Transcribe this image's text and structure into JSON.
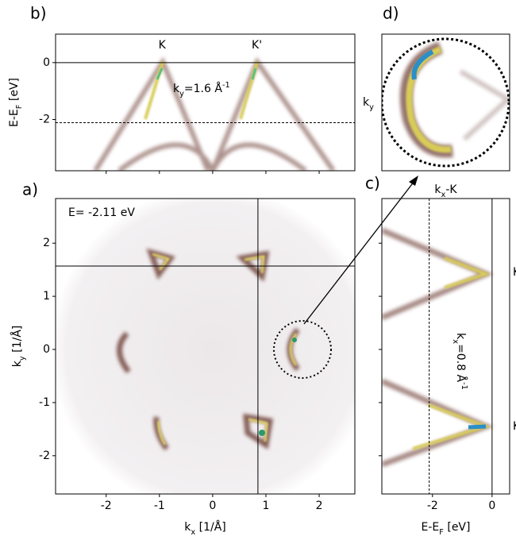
{
  "chart_data": [
    {
      "type": "image",
      "panel": "b)",
      "ylabel": [
        {
          "t": "E-E"
        },
        {
          "t": "F",
          "sub": true
        },
        {
          "t": " [eV]"
        }
      ],
      "xlim": [
        -2.95,
        2.67
      ],
      "ylim": [
        -3.8,
        1
      ],
      "xticks": [
        -2,
        -1,
        0,
        1,
        2
      ],
      "xtick_labels": false,
      "yticks": [
        -2,
        0
      ],
      "hlines": [
        0,
        -2.11
      ],
      "hline_styles": [
        "solid",
        "dashed"
      ],
      "points": [
        {
          "x": -0.95,
          "label": "K"
        },
        {
          "x": 0.83,
          "label": "K'"
        }
      ],
      "annotation": [
        {
          "t": "k"
        },
        {
          "t": "y",
          "sub": true
        },
        {
          "t": "=1.6 Å"
        },
        {
          "t": "-1",
          "sup": true
        }
      ]
    },
    {
      "type": "image",
      "panel": "a)",
      "xlabel": [
        {
          "t": "k"
        },
        {
          "t": "x",
          "sub": true
        },
        {
          "t": " [1/Å]"
        }
      ],
      "ylabel": [
        {
          "t": "k"
        },
        {
          "t": "y",
          "sub": true
        },
        {
          "t": " [1/Å]"
        }
      ],
      "xlim": [
        -2.95,
        2.67
      ],
      "ylim": [
        -2.72,
        2.84
      ],
      "xticks": [
        -2,
        -1,
        0,
        1,
        2
      ],
      "yticks": [
        -2,
        -1,
        0,
        1,
        2
      ],
      "hlines": [
        1.57
      ],
      "vlines": [
        0.85
      ],
      "annotation": [
        {
          "t": "E= -2.11 eV"
        }
      ]
    },
    {
      "type": "image",
      "panel": "d)",
      "xlabel": [
        {
          "t": "k"
        },
        {
          "t": "x",
          "sub": true
        },
        {
          "t": "-K"
        }
      ],
      "ylabel": [
        {
          "t": "k"
        },
        {
          "t": "y",
          "sub": true
        }
      ]
    },
    {
      "type": "image",
      "panel": "c)",
      "xlabel": [
        {
          "t": "E-E"
        },
        {
          "t": "F",
          "sub": true
        },
        {
          "t": " [eV]"
        }
      ],
      "xlim": [
        -3.7,
        0.59
      ],
      "ylim": [
        -2.72,
        2.84
      ],
      "xticks": [
        -2,
        0
      ],
      "yticks": [
        -2,
        -1,
        0,
        1,
        2
      ],
      "ytick_labels": false,
      "vlines": [
        0,
        -2.11
      ],
      "vline_styles": [
        "solid",
        "dashed"
      ],
      "points": [
        {
          "y": 1.45,
          "label": "K'"
        },
        {
          "y": -1.45,
          "label": "K'"
        }
      ],
      "annotation": [
        {
          "t": "k"
        },
        {
          "t": "x",
          "sub": true
        },
        {
          "t": "=0.8 Å"
        },
        {
          "t": "-1",
          "sup": true
        }
      ]
    }
  ]
}
